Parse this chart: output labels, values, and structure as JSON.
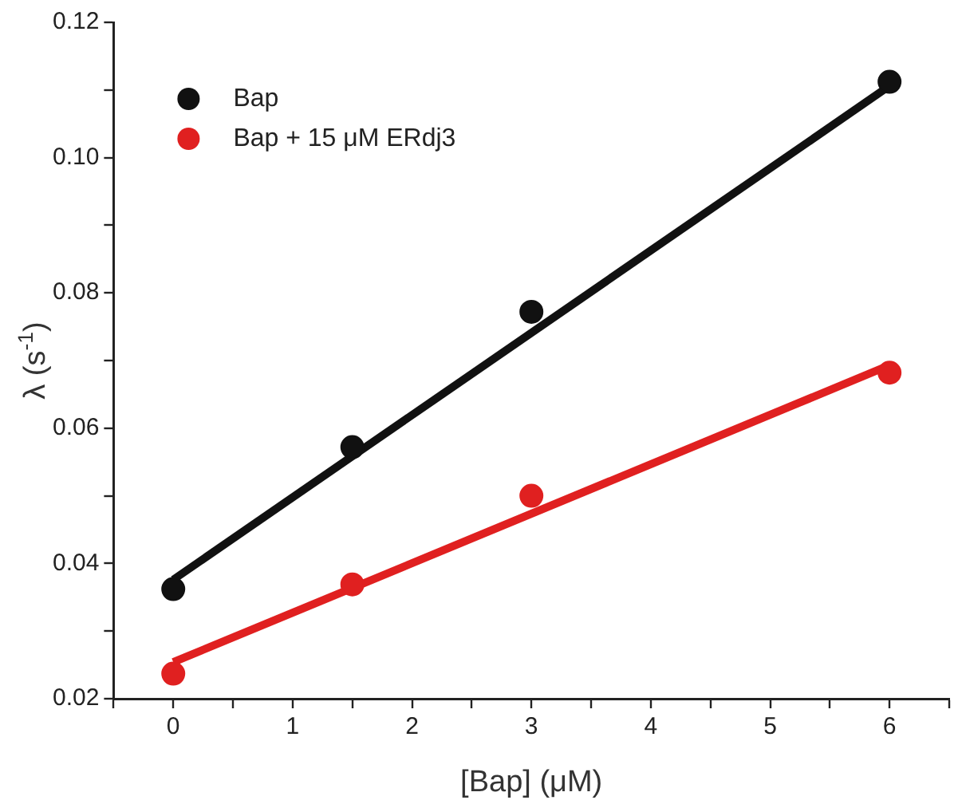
{
  "chart_data": {
    "type": "scatter",
    "xlabel": "[Bap] (μM)",
    "ylabel": "λ (s$^{-1}$)",
    "xlim": [
      -0.5,
      6.5
    ],
    "xticks": [
      {
        "value": -0.5,
        "label": null
      },
      0,
      {
        "value": 0.5,
        "label": null
      },
      1,
      {
        "value": 1.5,
        "label": null
      },
      2,
      {
        "value": 2.5,
        "label": null
      },
      3,
      {
        "value": 3.5,
        "label": null
      },
      4,
      {
        "value": 4.5,
        "label": null
      },
      5,
      {
        "value": 5.5,
        "label": null
      },
      6,
      {
        "value": 6.5,
        "label": null
      }
    ],
    "ylim": [
      0.02,
      0.12
    ],
    "yticks": [
      0.02,
      {
        "value": 0.03,
        "label": null
      },
      0.04,
      {
        "value": 0.05,
        "label": null
      },
      0.06,
      {
        "value": 0.07,
        "label": null
      },
      0.08,
      {
        "value": 0.09,
        "label": null
      },
      {
        "value": 0.1,
        "label": "0.10"
      },
      {
        "value": 0.11,
        "label": null
      },
      0.12
    ],
    "grid": false,
    "legend": "top left",
    "marker": "circle",
    "series": [
      {
        "name": "Bap",
        "color": "#111111",
        "x": [
          0,
          1.5,
          3,
          6
        ],
        "values": [
          0.0362,
          0.0572,
          0.0772,
          0.1112
        ]
      },
      {
        "name": "Bap + 15 μM ERdj3",
        "color": "#e02020",
        "x": [
          0,
          1.5,
          3,
          6
        ],
        "values": [
          0.0237,
          0.0369,
          0.05,
          0.0682
        ]
      },
      {
        "type": "line",
        "color": "#111111",
        "marker": "none",
        "x": [
          0,
          6
        ],
        "values": [
          0.0376,
          0.1106
        ]
      },
      {
        "type": "line",
        "color": "#e02020",
        "marker": "none",
        "x": [
          0,
          6
        ],
        "values": [
          0.0254,
          0.0693
        ]
      }
    ]
  }
}
